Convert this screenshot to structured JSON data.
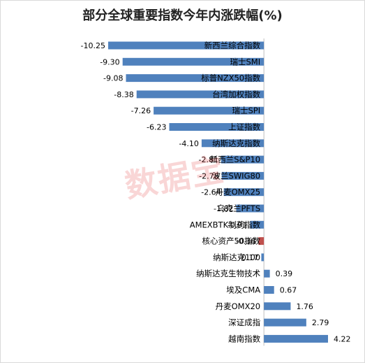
{
  "chart_data": {
    "type": "bar",
    "orientation": "horizontal",
    "title": "部分全球重要指数今年内涨跌幅(%)",
    "categories": [
      "新西兰综合指数",
      "瑞士SMI",
      "标普NZX50指数",
      "台湾加权指数",
      "瑞士SPI",
      "上证指数",
      "纳斯达克指数",
      "新西兰S&P10",
      "波兰SWIG80",
      "丹麦OMX25",
      "乌克兰PFTS",
      "AMEXBTK制药指数",
      "核心资产50指数",
      "纳斯达克100",
      "纳斯达克生物技术",
      "埃及CMA",
      "丹麦OMX20",
      "深证成指",
      "越南指数"
    ],
    "values": [
      -10.25,
      -9.3,
      -9.08,
      -8.38,
      -7.26,
      -6.23,
      -4.1,
      -2.81,
      -2.78,
      -2.64,
      -1.82,
      -0.91,
      -0.36,
      -0.17,
      0.39,
      0.67,
      1.76,
      2.79,
      4.22
    ],
    "value_labels": [
      "-10.25",
      "-9.30",
      "-9.08",
      "-8.38",
      "-7.26",
      "-6.23",
      "-4.10",
      "-2.81",
      "-2.78",
      "-2.64",
      "-1.82",
      "-0.91",
      "-0.36",
      "-0.17",
      "0.39",
      "0.67",
      "1.76",
      "2.79",
      "4.22"
    ],
    "highlight_category": "核心资产50指数",
    "colors": {
      "bar": "#4f81bd",
      "highlight": "#c0504d"
    },
    "xlim": [
      -10.25,
      4.22
    ],
    "grid": false,
    "legend": "none"
  },
  "watermark": "数据宝"
}
